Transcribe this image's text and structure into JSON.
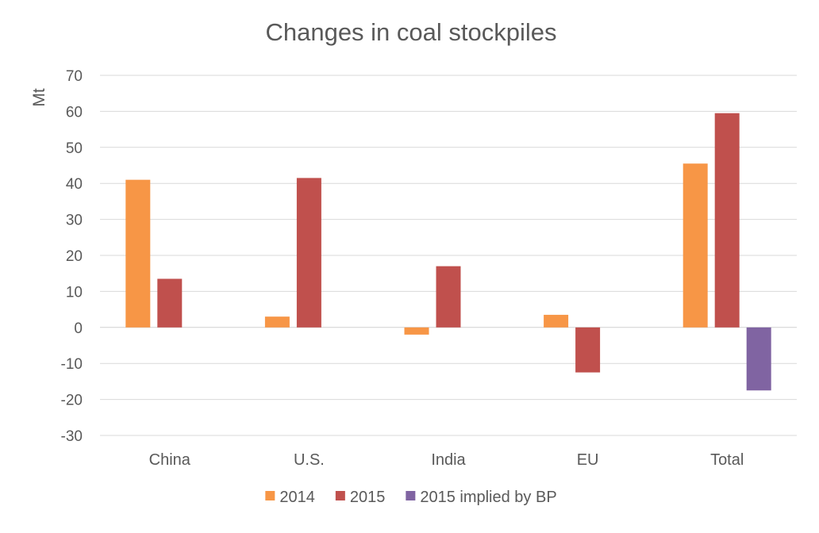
{
  "chart_data": {
    "type": "bar",
    "title": "Changes in coal stockpiles",
    "ylabel": "Mt",
    "xlabel": "",
    "ylim": [
      -30,
      70
    ],
    "yticks": [
      -30,
      -20,
      -10,
      0,
      10,
      20,
      30,
      40,
      50,
      60,
      70
    ],
    "grid": true,
    "legend_position": "bottom",
    "categories": [
      "China",
      "U.S.",
      "India",
      "EU",
      "Total"
    ],
    "series": [
      {
        "name": "2014",
        "color": "#F79646",
        "values": [
          41,
          3,
          -2,
          3.5,
          45.5
        ]
      },
      {
        "name": "2015",
        "color": "#C0504D",
        "values": [
          13.5,
          41.5,
          17,
          -12.5,
          59.5
        ]
      },
      {
        "name": "2015 implied by BP",
        "color": "#8064A2",
        "values": [
          null,
          null,
          null,
          null,
          -17.5
        ]
      }
    ]
  }
}
